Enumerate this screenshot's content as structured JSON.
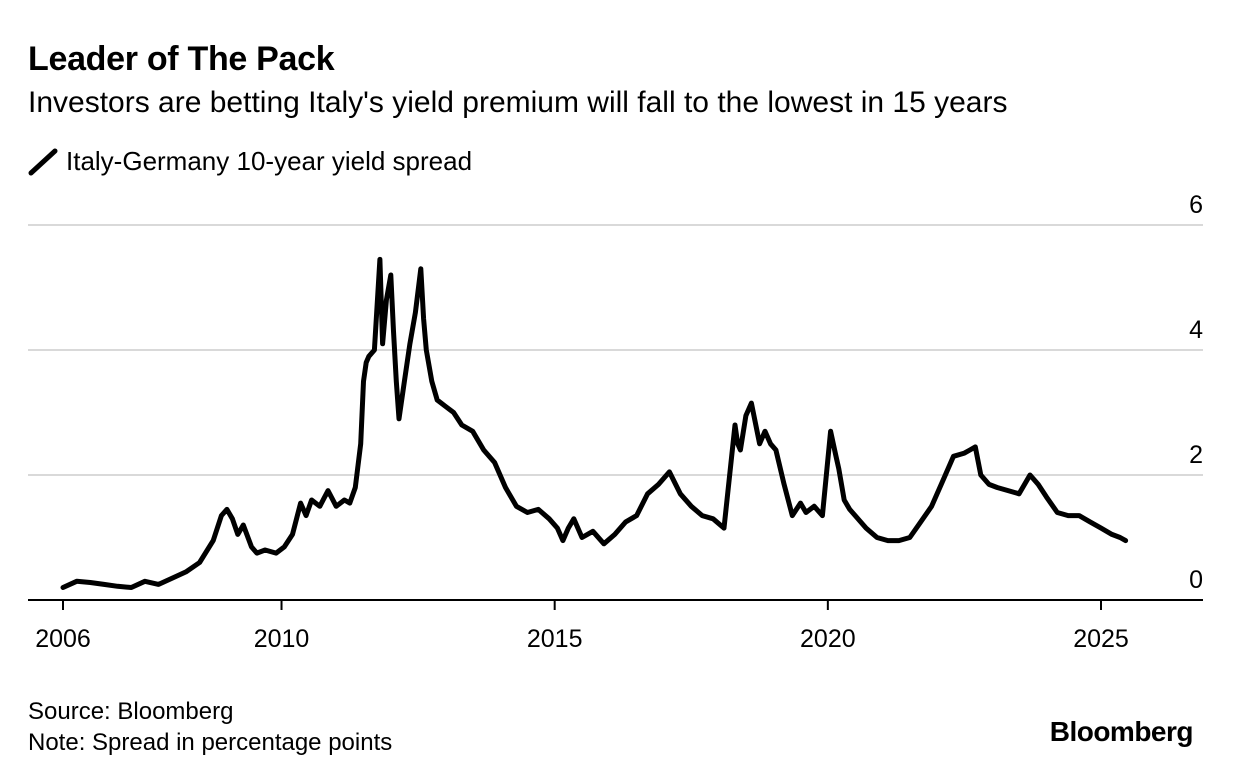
{
  "header": {
    "title": "Leader of The Pack",
    "subtitle": "Investors are betting Italy's yield premium will fall to the lowest in 15 years"
  },
  "legend": {
    "label": "Italy-Germany 10-year yield spread",
    "icon": "line-swatch-icon"
  },
  "footer": {
    "source": "Source: Bloomberg",
    "note": "Note: Spread in percentage points",
    "brand": "Bloomberg"
  },
  "colors": {
    "series": "#000000",
    "grid": "#d9d9d9",
    "axis": "#000000"
  },
  "chart_data": {
    "type": "line",
    "title": "Leader of The Pack",
    "xlabel": "",
    "ylabel": "",
    "xlim": [
      2006,
      2026.85
    ],
    "ylim": [
      0,
      6
    ],
    "x_ticks": [
      2006,
      2010,
      2015,
      2020,
      2025
    ],
    "y_ticks": [
      0,
      2,
      4,
      6
    ],
    "grid": "horizontal",
    "y_axis_side": "right",
    "series": [
      {
        "name": "Italy-Germany 10-year yield spread",
        "x": [
          2006.0,
          2006.25,
          2006.5,
          2006.75,
          2007.0,
          2007.25,
          2007.5,
          2007.75,
          2008.0,
          2008.25,
          2008.5,
          2008.75,
          2008.9,
          2009.0,
          2009.1,
          2009.2,
          2009.3,
          2009.45,
          2009.55,
          2009.7,
          2009.9,
          2010.05,
          2010.2,
          2010.35,
          2010.45,
          2010.55,
          2010.7,
          2010.85,
          2011.0,
          2011.15,
          2011.25,
          2011.35,
          2011.45,
          2011.5,
          2011.55,
          2011.6,
          2011.7,
          2011.8,
          2011.85,
          2011.92,
          2012.0,
          2012.05,
          2012.1,
          2012.15,
          2012.25,
          2012.35,
          2012.45,
          2012.55,
          2012.6,
          2012.65,
          2012.75,
          2012.85,
          2013.0,
          2013.15,
          2013.3,
          2013.5,
          2013.7,
          2013.9,
          2014.1,
          2014.3,
          2014.5,
          2014.7,
          2014.9,
          2015.05,
          2015.15,
          2015.25,
          2015.35,
          2015.5,
          2015.7,
          2015.9,
          2016.1,
          2016.3,
          2016.5,
          2016.7,
          2016.9,
          2017.1,
          2017.3,
          2017.5,
          2017.7,
          2017.9,
          2018.1,
          2018.3,
          2018.35,
          2018.4,
          2018.5,
          2018.6,
          2018.75,
          2018.85,
          2018.95,
          2019.05,
          2019.2,
          2019.35,
          2019.5,
          2019.6,
          2019.75,
          2019.9,
          2020.05,
          2020.15,
          2020.2,
          2020.3,
          2020.4,
          2020.5,
          2020.7,
          2020.9,
          2021.1,
          2021.3,
          2021.5,
          2021.7,
          2021.9,
          2022.1,
          2022.3,
          2022.5,
          2022.6,
          2022.7,
          2022.8,
          2022.95,
          2023.1,
          2023.3,
          2023.5,
          2023.7,
          2023.85,
          2024.0,
          2024.2,
          2024.4,
          2024.6,
          2024.8,
          2025.0,
          2025.2,
          2025.35,
          2025.45
        ],
        "y": [
          0.2,
          0.3,
          0.28,
          0.25,
          0.22,
          0.2,
          0.3,
          0.25,
          0.35,
          0.45,
          0.6,
          0.95,
          1.35,
          1.45,
          1.3,
          1.05,
          1.2,
          0.85,
          0.75,
          0.8,
          0.75,
          0.85,
          1.05,
          1.55,
          1.35,
          1.6,
          1.5,
          1.75,
          1.5,
          1.6,
          1.55,
          1.8,
          2.5,
          3.5,
          3.8,
          3.9,
          4.0,
          5.45,
          4.1,
          4.8,
          5.2,
          4.3,
          3.5,
          2.9,
          3.5,
          4.1,
          4.6,
          5.3,
          4.5,
          4.0,
          3.5,
          3.2,
          3.1,
          3.0,
          2.8,
          2.7,
          2.4,
          2.2,
          1.8,
          1.5,
          1.4,
          1.45,
          1.3,
          1.15,
          0.95,
          1.15,
          1.3,
          1.0,
          1.1,
          0.9,
          1.05,
          1.25,
          1.35,
          1.7,
          1.85,
          2.05,
          1.7,
          1.5,
          1.35,
          1.3,
          1.15,
          2.8,
          2.5,
          2.4,
          2.95,
          3.15,
          2.5,
          2.7,
          2.5,
          2.4,
          1.85,
          1.35,
          1.55,
          1.4,
          1.5,
          1.35,
          2.7,
          2.3,
          2.1,
          1.6,
          1.45,
          1.35,
          1.15,
          1.0,
          0.95,
          0.95,
          1.0,
          1.25,
          1.5,
          1.9,
          2.3,
          2.35,
          2.4,
          2.45,
          2.0,
          1.85,
          1.8,
          1.75,
          1.7,
          2.0,
          1.85,
          1.65,
          1.4,
          1.35,
          1.35,
          1.25,
          1.15,
          1.05,
          1.0,
          0.95
        ]
      }
    ]
  }
}
